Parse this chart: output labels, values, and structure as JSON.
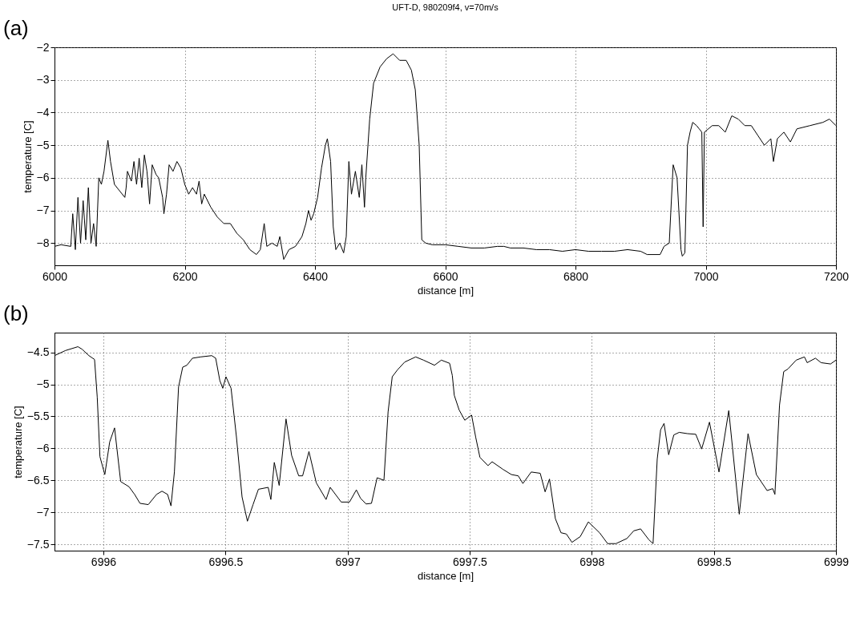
{
  "chart_data": [
    {
      "type": "line",
      "title": "UFT-D, 980209f4, v=70m/s",
      "xlabel": "distance [m]",
      "ylabel": "temperature [C]",
      "annotations": [
        "(a)"
      ],
      "grid": true,
      "x": [
        6000,
        6010,
        6025,
        6028,
        6032,
        6036,
        6040,
        6044,
        6048,
        6052,
        6056,
        6060,
        6064,
        6068,
        6072,
        6076,
        6082,
        6086,
        6092,
        6100,
        6108,
        6110,
        6112,
        6118,
        6122,
        6126,
        6130,
        6134,
        6138,
        6142,
        6146,
        6150,
        6156,
        6160,
        6166,
        6168,
        6172,
        6176,
        6182,
        6188,
        6194,
        6200,
        6206,
        6212,
        6218,
        6222,
        6226,
        6230,
        6240,
        6250,
        6260,
        6270,
        6280,
        6290,
        6300,
        6310,
        6316,
        6322,
        6326,
        6334,
        6342,
        6346,
        6352,
        6360,
        6370,
        6380,
        6386,
        6390,
        6394,
        6398,
        6404,
        6410,
        6416,
        6419,
        6424,
        6428,
        6432,
        6438,
        6444,
        6448,
        6452,
        6456,
        6462,
        6468,
        6472,
        6476,
        6478,
        6484,
        6490,
        6500,
        6510,
        6520,
        6530,
        6540,
        6548,
        6554,
        6560,
        6564,
        6570,
        6580,
        6600,
        6620,
        6640,
        6660,
        6680,
        6690,
        6700,
        6720,
        6740,
        6760,
        6780,
        6800,
        6820,
        6840,
        6860,
        6880,
        6900,
        6910,
        6930,
        6936,
        6944,
        6950,
        6956,
        6962,
        6964,
        6968,
        6972,
        6976,
        6980,
        6986,
        6990,
        6994,
        6996,
        6998,
        7010,
        7020,
        7030,
        7040,
        7050,
        7060,
        7070,
        7080,
        7090,
        7100,
        7104,
        7110,
        7120,
        7130,
        7140,
        7160,
        7180,
        7190,
        7200
      ],
      "series": [
        {
          "color": "#000000",
          "values": [
            -8.1,
            -8.05,
            -8.1,
            -7.1,
            -8.2,
            -6.6,
            -8.0,
            -6.7,
            -7.9,
            -6.3,
            -8.0,
            -7.4,
            -8.1,
            -6.0,
            -6.2,
            -5.8,
            -4.85,
            -5.5,
            -6.2,
            -6.4,
            -6.6,
            -6.3,
            -5.8,
            -6.1,
            -5.5,
            -6.2,
            -5.4,
            -6.3,
            -5.3,
            -5.8,
            -6.8,
            -5.6,
            -5.9,
            -6.0,
            -6.6,
            -7.1,
            -6.5,
            -5.6,
            -5.8,
            -5.5,
            -5.7,
            -6.2,
            -6.5,
            -6.3,
            -6.5,
            -6.1,
            -6.8,
            -6.5,
            -6.9,
            -7.2,
            -7.4,
            -7.4,
            -7.7,
            -7.9,
            -8.2,
            -8.35,
            -8.2,
            -7.4,
            -8.1,
            -8.0,
            -8.1,
            -7.8,
            -8.5,
            -8.2,
            -8.1,
            -7.8,
            -7.4,
            -7.0,
            -7.3,
            -7.1,
            -6.6,
            -5.7,
            -5.0,
            -4.8,
            -5.5,
            -7.5,
            -8.2,
            -8.0,
            -8.3,
            -7.8,
            -5.5,
            -6.5,
            -5.8,
            -6.6,
            -5.6,
            -6.9,
            -6.0,
            -4.2,
            -3.1,
            -2.6,
            -2.35,
            -2.2,
            -2.4,
            -2.4,
            -2.7,
            -3.3,
            -5.0,
            -7.9,
            -8.0,
            -8.05,
            -8.05,
            -8.1,
            -8.15,
            -8.15,
            -8.1,
            -8.1,
            -8.15,
            -8.15,
            -8.2,
            -8.2,
            -8.25,
            -8.2,
            -8.25,
            -8.25,
            -8.25,
            -8.2,
            -8.25,
            -8.35,
            -8.35,
            -8.1,
            -8.0,
            -5.6,
            -6.0,
            -8.2,
            -8.4,
            -8.3,
            -5.0,
            -4.6,
            -4.3,
            -4.4,
            -4.5,
            -4.6,
            -7.5,
            -4.6,
            -4.4,
            -4.4,
            -4.6,
            -4.1,
            -4.2,
            -4.4,
            -4.4,
            -4.7,
            -5.0,
            -4.8,
            -5.5,
            -4.8,
            -4.6,
            -4.9,
            -4.5,
            -4.4,
            -4.3,
            -4.2,
            -4.4
          ]
        }
      ],
      "xlim": [
        6000,
        7200
      ],
      "xticks": [
        6000,
        6200,
        6400,
        6600,
        6800,
        7000,
        7200
      ],
      "ylim": [
        -8.68,
        -2
      ],
      "yticks": [
        -8,
        -7,
        -6,
        -5,
        -4,
        -3,
        -2
      ]
    },
    {
      "type": "line",
      "xlabel": "distance [m]",
      "ylabel": "temperature [C]",
      "annotations": [
        "(b)"
      ],
      "grid": true,
      "x": [
        6995.8,
        6995.845,
        6995.896,
        6995.913,
        6995.941,
        6995.964,
        6995.975,
        6995.986,
        6996.006,
        6996.026,
        6996.046,
        6996.071,
        6996.105,
        6996.128,
        6996.15,
        6996.184,
        6996.218,
        6996.24,
        6996.263,
        6996.277,
        6996.291,
        6996.308,
        6996.325,
        6996.342,
        6996.365,
        6996.398,
        6996.444,
        6996.46,
        6996.477,
        6996.489,
        6996.502,
        6996.523,
        6996.545,
        6996.568,
        6996.59,
        6996.613,
        6996.635,
        6996.675,
        6996.686,
        6996.7,
        6996.72,
        6996.748,
        6996.771,
        6996.8,
        6996.816,
        6996.842,
        6996.872,
        6996.912,
        6996.929,
        6996.974,
        6997.008,
        6997.036,
        6997.053,
        6997.076,
        6997.098,
        6997.121,
        6997.149,
        6997.166,
        6997.183,
        6997.205,
        6997.234,
        6997.279,
        6997.311,
        6997.356,
        6997.384,
        6997.418,
        6997.429,
        6997.437,
        6997.457,
        6997.48,
        6997.508,
        6997.525,
        6997.542,
        6997.575,
        6997.592,
        6997.637,
        6997.671,
        6997.699,
        6997.718,
        6997.752,
        6997.789,
        6997.809,
        6997.827,
        6997.851,
        6997.874,
        6997.896,
        6997.919,
        6997.953,
        6997.986,
        6998.032,
        6998.065,
        6998.099,
        6998.144,
        6998.172,
        6998.2,
        6998.234,
        6998.251,
        6998.268,
        6998.282,
        6998.296,
        6998.315,
        6998.336,
        6998.358,
        6998.392,
        6998.426,
        6998.45,
        6998.482,
        6998.521,
        6998.561,
        6998.604,
        6998.64,
        6998.674,
        6998.718,
        6998.741,
        6998.75,
        6998.769,
        6998.786,
        6998.803,
        6998.837,
        6998.871,
        6998.882,
        6998.916,
        6998.939,
        6998.978,
        6999.0
      ],
      "series": [
        {
          "color": "#000000",
          "values": [
            -4.55,
            -4.47,
            -4.41,
            -4.45,
            -4.55,
            -4.61,
            -5.2,
            -6.13,
            -6.41,
            -5.9,
            -5.68,
            -6.52,
            -6.6,
            -6.72,
            -6.86,
            -6.88,
            -6.72,
            -6.67,
            -6.72,
            -6.9,
            -6.37,
            -5.04,
            -4.73,
            -4.7,
            -4.59,
            -4.57,
            -4.55,
            -4.59,
            -4.94,
            -5.06,
            -4.88,
            -5.06,
            -5.82,
            -6.76,
            -7.14,
            -6.88,
            -6.64,
            -6.61,
            -6.8,
            -6.22,
            -6.58,
            -5.54,
            -6.11,
            -6.43,
            -6.43,
            -6.05,
            -6.54,
            -6.8,
            -6.61,
            -6.84,
            -6.84,
            -6.65,
            -6.78,
            -6.87,
            -6.86,
            -6.46,
            -6.5,
            -5.43,
            -4.88,
            -4.77,
            -4.65,
            -4.57,
            -4.62,
            -4.7,
            -4.62,
            -4.67,
            -4.86,
            -5.17,
            -5.4,
            -5.56,
            -5.48,
            -5.83,
            -6.14,
            -6.27,
            -6.21,
            -6.33,
            -6.41,
            -6.43,
            -6.55,
            -6.37,
            -6.39,
            -6.68,
            -6.48,
            -7.1,
            -7.32,
            -7.34,
            -7.47,
            -7.38,
            -7.15,
            -7.32,
            -7.49,
            -7.49,
            -7.41,
            -7.29,
            -7.26,
            -7.43,
            -7.49,
            -6.17,
            -5.71,
            -5.61,
            -6.1,
            -5.79,
            -5.75,
            -5.77,
            -5.78,
            -6.01,
            -5.59,
            -6.37,
            -5.41,
            -7.03,
            -5.77,
            -6.41,
            -6.66,
            -6.63,
            -6.72,
            -5.32,
            -4.8,
            -4.76,
            -4.62,
            -4.57,
            -4.66,
            -4.59,
            -4.66,
            -4.68,
            -4.62
          ]
        }
      ],
      "xlim": [
        6995.8,
        6999
      ],
      "xticks": [
        6996,
        6996.5,
        6997,
        6997.5,
        6998,
        6998.5,
        6999
      ],
      "ylim": [
        -7.6,
        -4.19
      ],
      "yticks": [
        -7.5,
        -7,
        -6.5,
        -6,
        -5.5,
        -5,
        -4.5
      ]
    }
  ]
}
